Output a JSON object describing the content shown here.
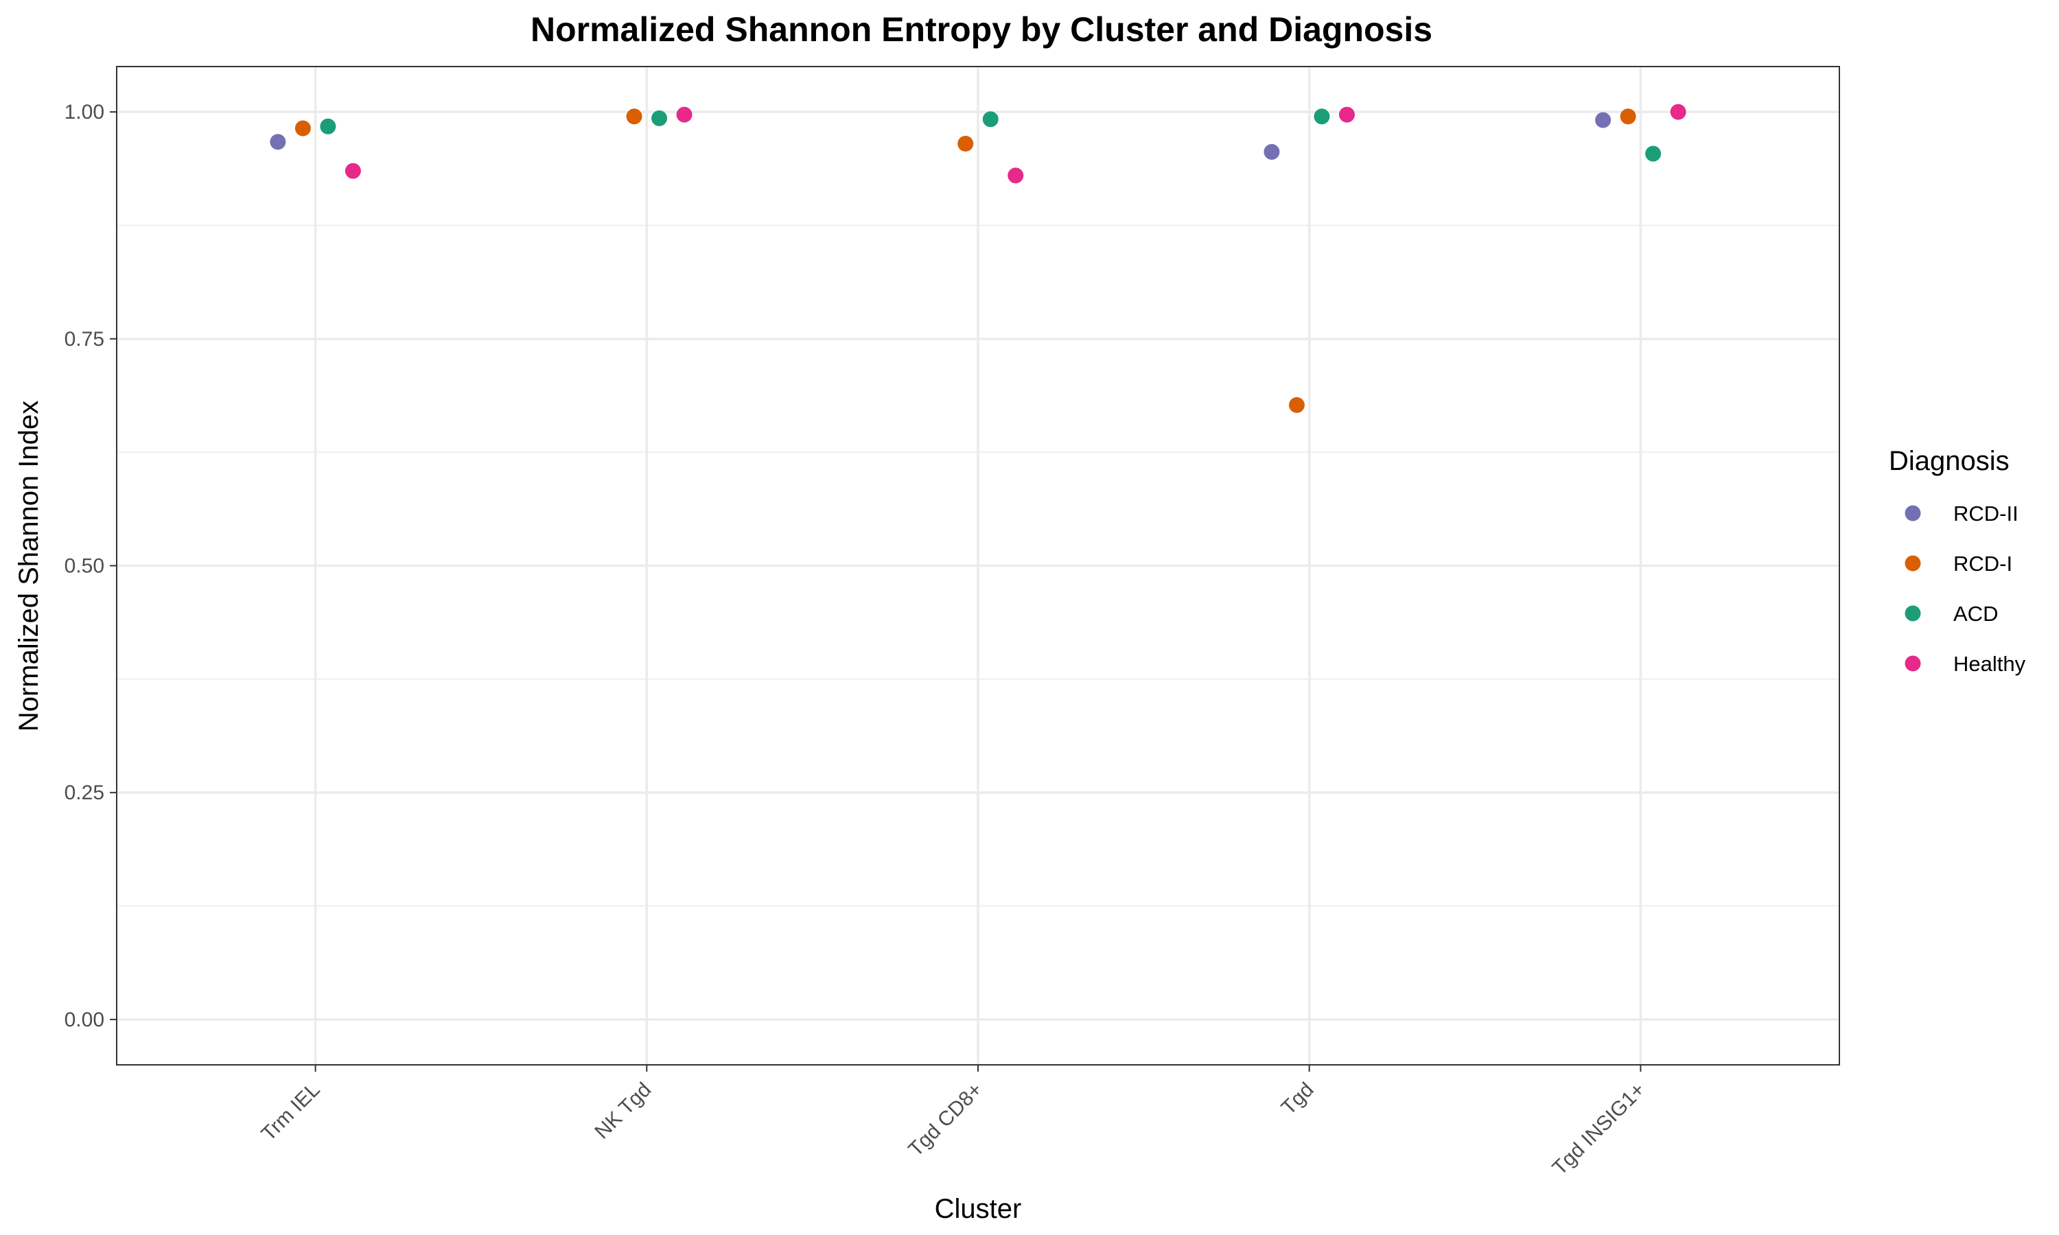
{
  "chart_data": {
    "type": "scatter",
    "title": "Normalized Shannon Entropy by Cluster and Diagnosis",
    "xlabel": "Cluster",
    "ylabel": "Normalized Shannon Index",
    "categories": [
      "Trm IEL",
      "NK Tgd",
      "Tgd CD8+",
      "Tgd",
      "Tgd INSIG1+"
    ],
    "ylim": [
      -0.05,
      1.05
    ],
    "yticks": [
      0.0,
      0.25,
      0.5,
      0.75,
      1.0
    ],
    "ytick_labels": [
      "0.00",
      "0.25",
      "0.50",
      "0.75",
      "1.00"
    ],
    "grid": true,
    "legend": {
      "title": "Diagnosis",
      "position": "right",
      "entries": [
        "RCD-II",
        "RCD-I",
        "ACD",
        "Healthy"
      ]
    },
    "series": [
      {
        "name": "RCD-II",
        "color": "#7570b3",
        "values": [
          0.967,
          null,
          null,
          0.956,
          0.991
        ]
      },
      {
        "name": "RCD-I",
        "color": "#d95f02",
        "values": [
          0.982,
          0.995,
          0.965,
          0.677,
          0.995
        ]
      },
      {
        "name": "ACD",
        "color": "#1b9e77",
        "values": [
          0.984,
          0.993,
          0.992,
          0.995,
          0.954
        ]
      },
      {
        "name": "Healthy",
        "color": "#e7298a",
        "values": [
          0.935,
          0.997,
          0.93,
          0.997,
          1.0
        ]
      }
    ]
  }
}
